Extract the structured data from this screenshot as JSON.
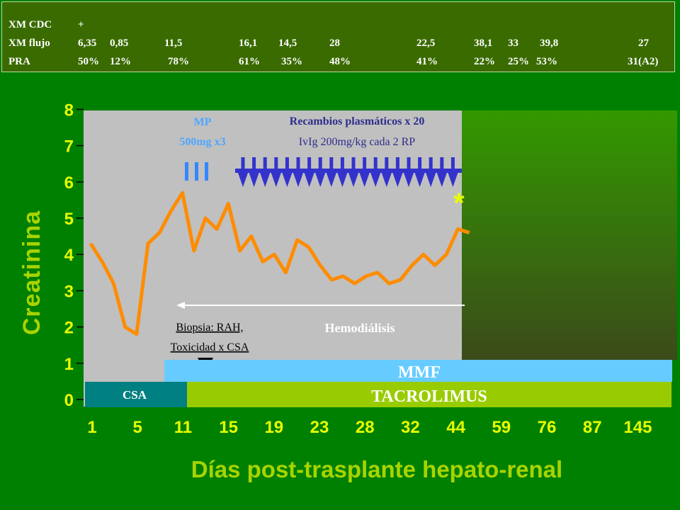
{
  "header_table": {
    "rows": [
      {
        "label": "XM CDC",
        "values": [
          "+"
        ]
      },
      {
        "label": "XM flujo",
        "values": [
          "6,35",
          "0,85",
          "11,5",
          "16,1",
          "14,5",
          "28",
          "22,5",
          "38,1",
          "33",
          "39,8",
          "27"
        ]
      },
      {
        "label": "PRA",
        "values": [
          "50%",
          "12%",
          "78%",
          "61%",
          "35%",
          "48%",
          "41%",
          "22%",
          "25%",
          "53%",
          "31(A2)"
        ]
      }
    ]
  },
  "annotations": {
    "mp_line1": "MP",
    "mp_line2": "500mg x3",
    "mp_mark": "III",
    "plasma_line1": "Recambios plasmáticos x 20",
    "plasma_line2": "IvIg 200mg/kg cada 2 RP",
    "biopsy_line1": "Biopsia: RAH,",
    "biopsy_line2": "Toxicidad x CSA",
    "hemodialysis": "Hemodiálisis",
    "asterisk": "*"
  },
  "treatment_bars": {
    "mmf": "MMF",
    "csa": "CSA",
    "tacrolimus": "TACROLIMUS"
  },
  "colors": {
    "background": "#008000",
    "header_bg": "#3a6b00",
    "plot_bg": "#c0c0c0",
    "line": "#ff8c00",
    "arrows": "#3333cc",
    "mp_text": "#4da6ff",
    "plasma_text": "#2d2d8c",
    "mmf_bar": "#66ccff",
    "csa_bar": "#008080",
    "tacrolimus_bar": "#99cc00",
    "axis_text": "#e8ff00",
    "label_text": "#a8d400"
  },
  "chart_data": {
    "type": "line",
    "xlabel": "Días post-trasplante hepato-renal",
    "ylabel": "Creatinina",
    "ylim": [
      0,
      8
    ],
    "yticks": [
      "0",
      "1",
      "2",
      "3",
      "4",
      "5",
      "6",
      "7",
      "8"
    ],
    "xticks": [
      "1",
      "5",
      "11",
      "15",
      "19",
      "23",
      "28",
      "32",
      "44",
      "59",
      "76",
      "87",
      "145"
    ],
    "series": [
      {
        "values": [
          4.3,
          3.8,
          3.2,
          2.0,
          1.8,
          4.3,
          4.6,
          5.2,
          5.7,
          4.1,
          5.0,
          4.7,
          5.4,
          4.1,
          4.5,
          3.8,
          4.0,
          3.5,
          4.4,
          4.2,
          3.7,
          3.3,
          3.4,
          3.2,
          3.4,
          3.5,
          3.2,
          3.3,
          3.7,
          4.0,
          3.7,
          4.0,
          4.7,
          4.6
        ]
      }
    ],
    "plasma_exchange_count": 20,
    "mp_doses": 3
  }
}
